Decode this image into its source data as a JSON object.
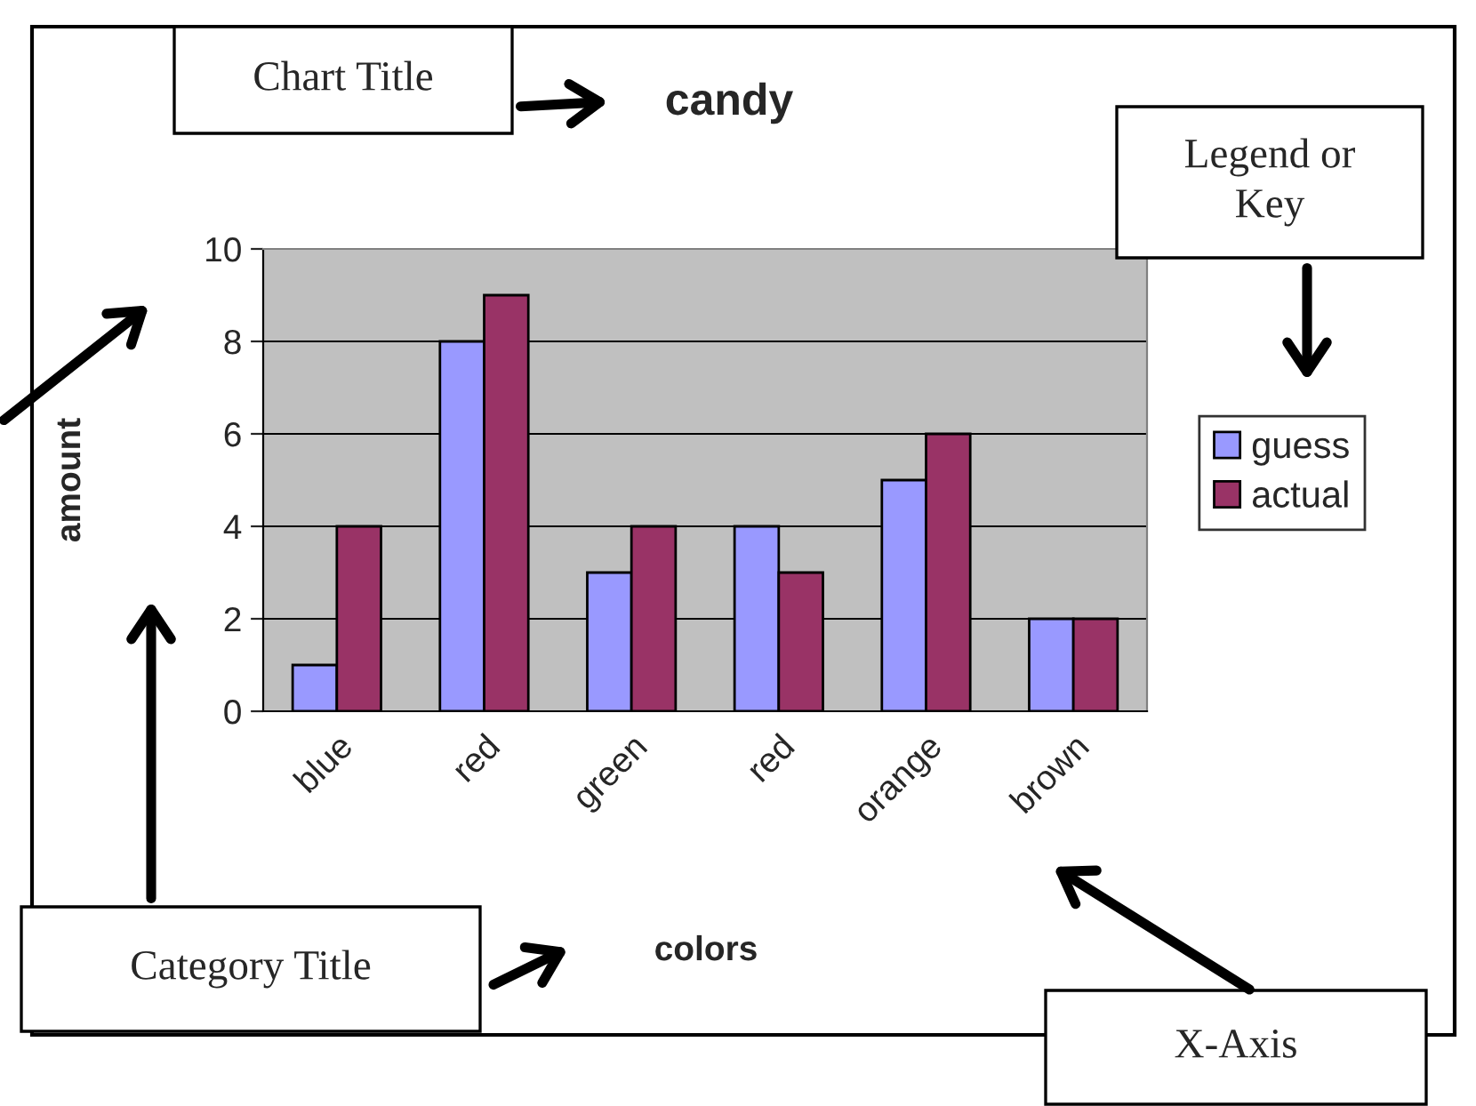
{
  "chart_data": {
    "type": "bar",
    "title": "candy",
    "xlabel": "colors",
    "ylabel": "amount",
    "categories": [
      "blue",
      "red",
      "green",
      "red",
      "orange",
      "brown"
    ],
    "series": [
      {
        "name": "guess",
        "color": "#9999ff",
        "values": [
          1,
          8,
          3,
          4,
          5,
          2
        ]
      },
      {
        "name": "actual",
        "color": "#993366",
        "values": [
          4,
          9,
          4,
          3,
          6,
          2
        ]
      }
    ],
    "ylim": [
      0,
      10
    ],
    "yticks": [
      0,
      2,
      4,
      6,
      8,
      10
    ],
    "grid": "y",
    "legend": "right",
    "annotations": [
      "Chart Title",
      "Legend or\nKey",
      "Category Title",
      "X-Axis"
    ]
  }
}
